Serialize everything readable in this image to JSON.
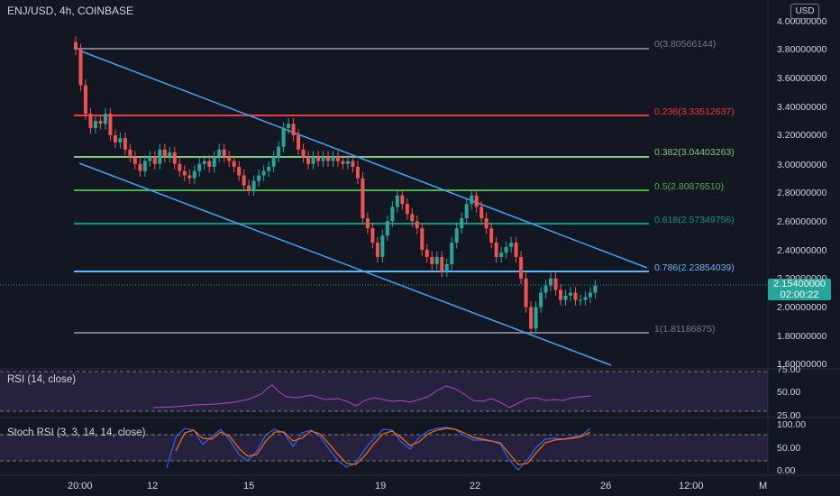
{
  "header": {
    "symbol_title": "ENJ/USD, 4h, COINBASE",
    "currency_button": "USD"
  },
  "price_axis": {
    "ticks": [
      "4.00000000",
      "3.80000000",
      "3.60000000",
      "3.40000000",
      "3.20000000",
      "3.00000000",
      "2.80000000",
      "2.60000000",
      "2.40000000",
      "2.20000000",
      "2.00000000",
      "1.80000000",
      "1.60000000"
    ]
  },
  "current_price": {
    "value": "2.15400000",
    "countdown": "02:00:22",
    "color": "#26a69a"
  },
  "time_axis": {
    "labels": [
      "20:00",
      "12",
      "15",
      "19",
      "22",
      "26",
      "12:00",
      "M"
    ]
  },
  "fibonacci": [
    {
      "label": "0(3.80566144)",
      "color": "#787b86"
    },
    {
      "label": "0.236(3.33512637)",
      "color": "#f23645"
    },
    {
      "label": "0.382(3.04403263)",
      "color": "#81c784"
    },
    {
      "label": "0.5(2.80876510)",
      "color": "#4caf50"
    },
    {
      "label": "0.618(2.57349756)",
      "color": "#089981"
    },
    {
      "label": "0.786(2.23854039)",
      "color": "#64b5f6"
    },
    {
      "label": "1(1.81186875)",
      "color": "#787b86"
    }
  ],
  "rsi": {
    "label": "RSI (14, close)",
    "ticks": [
      "75.00",
      "50.00",
      "25.00"
    ]
  },
  "stoch_rsi": {
    "label": "Stoch RSI (3, 3, 14, 14, close)",
    "ticks": [
      "100.00",
      "50.00",
      "0.00"
    ]
  },
  "colors": {
    "up": "#26a69a",
    "down": "#ef5350",
    "channel": "#42a5f5",
    "panel_fill": "#7e57c2"
  },
  "chart_data": {
    "type": "candlestick",
    "ylim": [
      1.6,
      4.0
    ],
    "close": [
      3.8,
      3.55,
      3.35,
      3.25,
      3.3,
      3.28,
      3.35,
      3.2,
      3.15,
      3.18,
      3.1,
      3.05,
      3.0,
      2.95,
      3.02,
      3.05,
      3.0,
      3.1,
      3.05,
      3.08,
      3.0,
      2.95,
      2.92,
      2.9,
      2.95,
      3.0,
      3.02,
      2.98,
      3.05,
      3.1,
      3.05,
      3.02,
      2.98,
      2.92,
      2.85,
      2.82,
      2.88,
      2.92,
      2.95,
      2.98,
      3.05,
      3.12,
      3.25,
      3.28,
      3.2,
      3.1,
      3.05,
      3.0,
      3.05,
      3.02,
      3.05,
      3.02,
      3.05,
      3.02,
      3.0,
      3.02,
      2.98,
      2.9,
      2.62,
      2.55,
      2.45,
      2.35,
      2.5,
      2.6,
      2.7,
      2.78,
      2.72,
      2.65,
      2.6,
      2.55,
      2.4,
      2.35,
      2.3,
      2.35,
      2.25,
      2.3,
      2.45,
      2.55,
      2.62,
      2.72,
      2.78,
      2.7,
      2.62,
      2.55,
      2.45,
      2.35,
      2.38,
      2.42,
      2.45,
      2.35,
      2.2,
      2.0,
      1.85,
      2.0,
      2.1,
      2.15,
      2.2,
      2.12,
      2.05,
      2.08,
      2.1,
      2.05,
      2.05,
      2.07,
      2.1,
      2.15
    ]
  }
}
